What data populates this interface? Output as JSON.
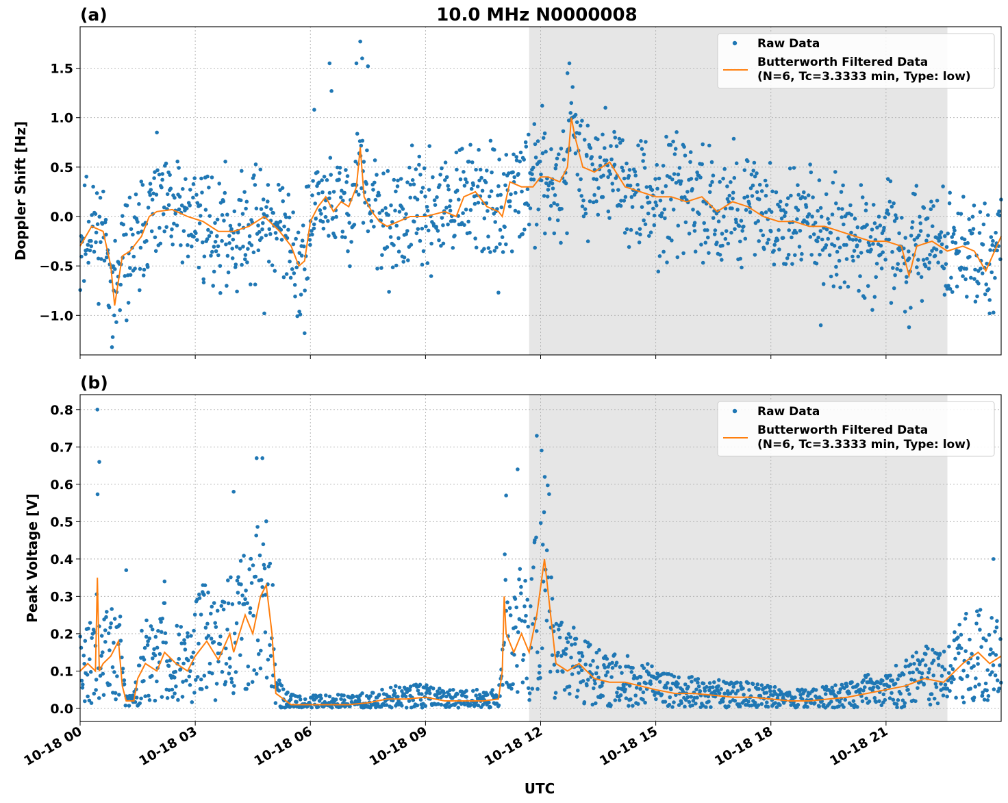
{
  "figure": {
    "title": "10.0 MHz N0000008",
    "xlabel": "UTC",
    "x_ticks": [
      "10-18 00",
      "10-18 03",
      "10-18 06",
      "10-18 09",
      "10-18 12",
      "10-18 15",
      "10-18 18",
      "10-18 21"
    ],
    "shaded_interval_hours": [
      11.7,
      22.6
    ],
    "shade_color": "#e6e6e6",
    "raw_color": "#1f77b4",
    "filtered_color": "#ff7f0e",
    "legend": {
      "raw_label": "Raw Data",
      "filtered_label_line1": "Butterworth Filtered Data",
      "filtered_label_line2": "(N=6, Tc=3.3333 min, Type: low)"
    }
  },
  "chart_data": [
    {
      "type": "scatter",
      "panel_label": "(a)",
      "ylabel": "Doppler Shift [Hz]",
      "xlim_hours": [
        0,
        24
      ],
      "ylim": [
        -1.4,
        1.92
      ],
      "y_ticks": [
        1.5,
        1.0,
        0.5,
        0.0,
        -0.5,
        -1.0
      ],
      "y_tick_labels": [
        "1.5",
        "1.0",
        "0.5",
        "0.0",
        "−0.5",
        "−1.0"
      ],
      "grid": true,
      "legend_position": "top-right",
      "series": [
        {
          "name": "Butterworth Filtered Data",
          "style": "line",
          "x": [
            0,
            0.3,
            0.6,
            0.8,
            0.9,
            1.1,
            1.3,
            1.6,
            1.8,
            2.0,
            2.4,
            2.8,
            3.2,
            3.6,
            4.0,
            4.4,
            4.8,
            5.2,
            5.5,
            5.7,
            5.85,
            6.0,
            6.2,
            6.4,
            6.6,
            6.8,
            7.0,
            7.2,
            7.3,
            7.4,
            7.6,
            7.8,
            8.0,
            8.3,
            8.6,
            9.0,
            9.5,
            9.8,
            10.0,
            10.3,
            10.6,
            10.9,
            11.0,
            11.2,
            11.5,
            11.8,
            12.0,
            12.2,
            12.5,
            12.7,
            12.8,
            12.9,
            13.1,
            13.4,
            13.8,
            14.2,
            14.6,
            15.0,
            15.4,
            15.8,
            16.2,
            16.6,
            17.0,
            17.4,
            17.8,
            18.2,
            18.6,
            19.0,
            19.4,
            19.8,
            20.2,
            20.6,
            21.0,
            21.4,
            21.6,
            21.8,
            22.2,
            22.6,
            23.0,
            23.3,
            23.6,
            24.0
          ],
          "y": [
            -0.3,
            -0.1,
            -0.15,
            -0.5,
            -0.9,
            -0.4,
            -0.35,
            -0.2,
            0.0,
            0.05,
            0.07,
            0.0,
            -0.05,
            -0.15,
            -0.15,
            -0.1,
            0.0,
            -0.15,
            -0.3,
            -0.5,
            -0.45,
            -0.05,
            0.1,
            0.2,
            0.05,
            0.15,
            0.1,
            0.3,
            0.7,
            0.2,
            0.05,
            -0.05,
            -0.1,
            -0.05,
            0.0,
            0.0,
            0.05,
            0.0,
            0.2,
            0.25,
            0.1,
            0.05,
            0.0,
            0.35,
            0.3,
            0.3,
            0.4,
            0.4,
            0.35,
            0.5,
            1.0,
            0.8,
            0.5,
            0.45,
            0.55,
            0.3,
            0.25,
            0.2,
            0.2,
            0.15,
            0.2,
            0.05,
            0.15,
            0.1,
            0.0,
            -0.05,
            -0.05,
            -0.1,
            -0.1,
            -0.15,
            -0.2,
            -0.25,
            -0.25,
            -0.3,
            -0.6,
            -0.3,
            -0.25,
            -0.35,
            -0.3,
            -0.35,
            -0.55,
            -0.2
          ]
        },
        {
          "name": "Raw Data",
          "style": "scatter",
          "envelope": "same x as filtered; points spread around filtered line",
          "spread_hz": 0.28,
          "outliers": [
            {
              "x": 6.5,
              "y": 1.55
            },
            {
              "x": 7.3,
              "y": 1.77
            },
            {
              "x": 7.35,
              "y": 1.6
            },
            {
              "x": 7.5,
              "y": 1.52
            },
            {
              "x": 7.2,
              "y": 1.55
            },
            {
              "x": 6.55,
              "y": 1.27
            },
            {
              "x": 12.75,
              "y": 1.55
            },
            {
              "x": 12.7,
              "y": 1.45
            },
            {
              "x": 0.85,
              "y": -1.22
            },
            {
              "x": 5.85,
              "y": -1.18
            },
            {
              "x": 4.8,
              "y": -0.98
            },
            {
              "x": 10.9,
              "y": -0.77
            },
            {
              "x": 19.3,
              "y": -1.1
            },
            {
              "x": 21.6,
              "y": -1.12
            },
            {
              "x": 23.7,
              "y": -0.98
            },
            {
              "x": 6.1,
              "y": 1.08
            }
          ]
        }
      ]
    },
    {
      "type": "scatter",
      "panel_label": "(b)",
      "ylabel": "Peak Voltage [V]",
      "xlim_hours": [
        0,
        24
      ],
      "ylim": [
        -0.035,
        0.84
      ],
      "y_ticks": [
        0.8,
        0.7,
        0.6,
        0.5,
        0.4,
        0.3,
        0.2,
        0.1,
        0.0
      ],
      "y_tick_labels": [
        "0.8",
        "0.7",
        "0.6",
        "0.5",
        "0.4",
        "0.3",
        "0.2",
        "0.1",
        "0.0"
      ],
      "grid": true,
      "legend_position": "top-right",
      "series": [
        {
          "name": "Butterworth Filtered Data",
          "style": "line",
          "x": [
            0,
            0.2,
            0.4,
            0.45,
            0.5,
            0.6,
            0.8,
            1.0,
            1.1,
            1.2,
            1.4,
            1.5,
            1.7,
            2.0,
            2.2,
            2.5,
            2.8,
            3.0,
            3.3,
            3.6,
            3.9,
            4.0,
            4.3,
            4.5,
            4.7,
            4.85,
            5.0,
            5.1,
            5.5,
            6.0,
            6.5,
            7.0,
            7.5,
            8.0,
            8.5,
            9.0,
            9.5,
            10.0,
            10.5,
            10.9,
            11.0,
            11.05,
            11.1,
            11.3,
            11.5,
            11.7,
            11.9,
            12.1,
            12.4,
            12.7,
            13.0,
            13.4,
            13.8,
            14.2,
            14.6,
            15.0,
            15.5,
            16.0,
            16.5,
            17.0,
            17.5,
            18.0,
            18.5,
            19.0,
            19.5,
            20.0,
            20.5,
            21.0,
            21.5,
            22.0,
            22.5,
            23.0,
            23.4,
            23.7,
            24.0
          ],
          "y": [
            0.1,
            0.12,
            0.1,
            0.35,
            0.1,
            0.12,
            0.14,
            0.18,
            0.06,
            0.02,
            0.02,
            0.08,
            0.12,
            0.1,
            0.15,
            0.12,
            0.1,
            0.14,
            0.18,
            0.13,
            0.2,
            0.15,
            0.25,
            0.2,
            0.3,
            0.33,
            0.2,
            0.04,
            0.01,
            0.01,
            0.01,
            0.01,
            0.015,
            0.025,
            0.025,
            0.03,
            0.02,
            0.02,
            0.02,
            0.025,
            0.1,
            0.3,
            0.2,
            0.15,
            0.2,
            0.15,
            0.25,
            0.4,
            0.12,
            0.1,
            0.12,
            0.08,
            0.07,
            0.07,
            0.06,
            0.05,
            0.04,
            0.04,
            0.035,
            0.03,
            0.03,
            0.025,
            0.02,
            0.02,
            0.025,
            0.03,
            0.04,
            0.05,
            0.06,
            0.08,
            0.07,
            0.12,
            0.15,
            0.12,
            0.14
          ]
        },
        {
          "name": "Raw Data",
          "style": "scatter",
          "envelope": "same x as filtered; points spread above filtered line",
          "spread_v": 0.1,
          "outliers": [
            {
              "x": 0.45,
              "y": 0.8
            },
            {
              "x": 0.5,
              "y": 0.66
            },
            {
              "x": 4.6,
              "y": 0.67
            },
            {
              "x": 4.75,
              "y": 0.67
            },
            {
              "x": 4.0,
              "y": 0.58
            },
            {
              "x": 11.1,
              "y": 0.57
            },
            {
              "x": 11.9,
              "y": 0.73
            },
            {
              "x": 11.4,
              "y": 0.64
            },
            {
              "x": 23.8,
              "y": 0.4
            },
            {
              "x": 1.2,
              "y": 0.37
            },
            {
              "x": 2.2,
              "y": 0.34
            },
            {
              "x": 3.2,
              "y": 0.33
            }
          ]
        }
      ]
    }
  ]
}
